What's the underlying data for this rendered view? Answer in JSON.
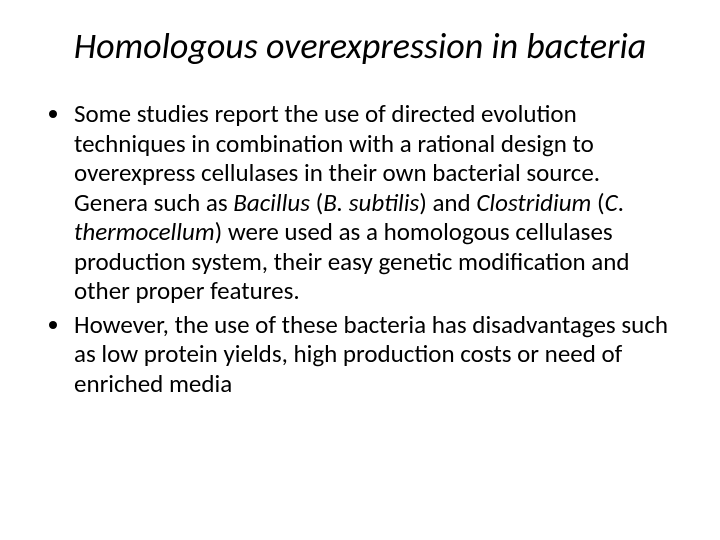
{
  "slide": {
    "background_color": "#ffffff",
    "text_color": "#000000",
    "title": {
      "text": "Homologous overexpression in bacteria",
      "font_size_pt": 36,
      "italic": true,
      "align": "center"
    },
    "body": {
      "font_size_pt": 25,
      "line_height": 1.18,
      "bullets": [
        {
          "runs": [
            {
              "text": "Some studies report the use of directed evolution techniques in combination with a rational design to overexpress cellulases in their own bacterial source. Genera such as ",
              "italic": false
            },
            {
              "text": "Bacillus",
              "italic": true
            },
            {
              "text": " (",
              "italic": false
            },
            {
              "text": "B. subtilis",
              "italic": true
            },
            {
              "text": ") and ",
              "italic": false
            },
            {
              "text": "Clostridium",
              "italic": true
            },
            {
              "text": " (",
              "italic": false
            },
            {
              "text": "C",
              "italic": true
            },
            {
              "text": ". ",
              "italic": false
            },
            {
              "text": "thermocellum",
              "italic": true
            },
            {
              "text": ") were used as a homologous cellulases production system, their easy genetic modification and other proper features.",
              "italic": false
            }
          ]
        },
        {
          "runs": [
            {
              "text": " However, the use of these bacteria has disadvantages such as low protein yields, high production costs or need of enriched media",
              "italic": false
            }
          ]
        }
      ]
    }
  }
}
